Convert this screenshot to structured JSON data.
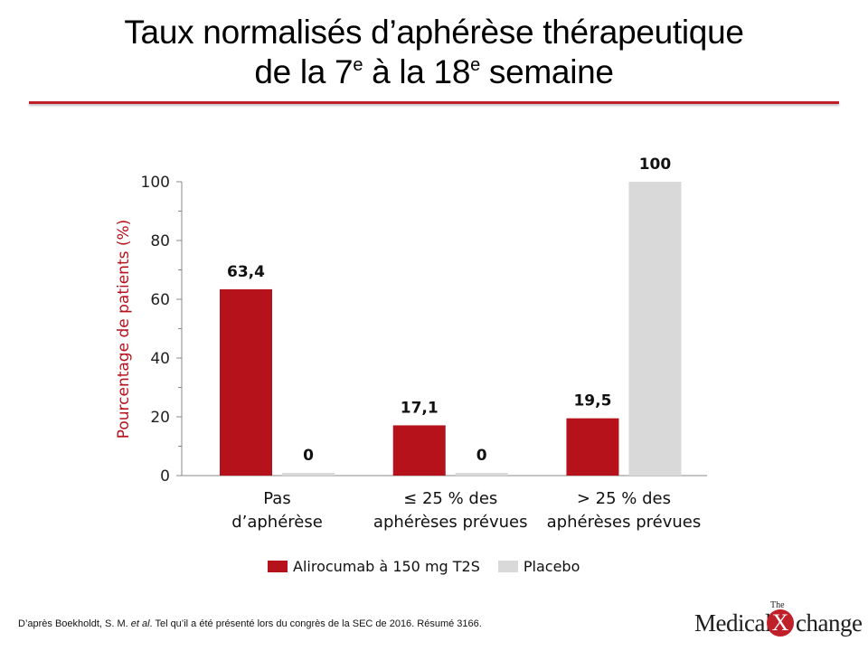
{
  "title": {
    "line1": "Taux normalisés d’aphérèse thérapeutique",
    "line2_pre": "de la 7",
    "line2_sup1": "e",
    "line2_mid": " à la 18",
    "line2_sup2": "e",
    "line2_post": " semaine"
  },
  "chart_data": {
    "type": "bar",
    "title": "",
    "xlabel": "",
    "ylabel": "Pourcentage de patients (%)",
    "ylim": [
      0,
      100
    ],
    "yticks": [
      0,
      20,
      40,
      60,
      80,
      100
    ],
    "grid": false,
    "legend_position": "bottom",
    "categories": [
      [
        "Pas",
        "d’aphérèse"
      ],
      [
        "≤ 25 % des",
        "aphérèses prévues"
      ],
      [
        "> 25 % des",
        "aphérèses prévues"
      ]
    ],
    "series": [
      {
        "name": "Alirocumab à 150 mg T2S",
        "color": "#b5121b",
        "values": [
          63.4,
          17.1,
          19.5
        ],
        "labels": [
          "63,4",
          "17,1",
          "19,5"
        ]
      },
      {
        "name": "Placebo",
        "color": "#d9d9da",
        "values": [
          0,
          0,
          100
        ],
        "labels": [
          "0",
          "0",
          "100"
        ]
      }
    ]
  },
  "footnote": {
    "pre": "D’après Boekholdt, S. M. ",
    "italic": "et al",
    "post": ". Tel qu’il a été présenté lors du congrès de la SEC de 2016. Résumé 3166."
  },
  "logo": {
    "small": "The",
    "left": "Medical",
    "x": "X",
    "right": "change"
  }
}
